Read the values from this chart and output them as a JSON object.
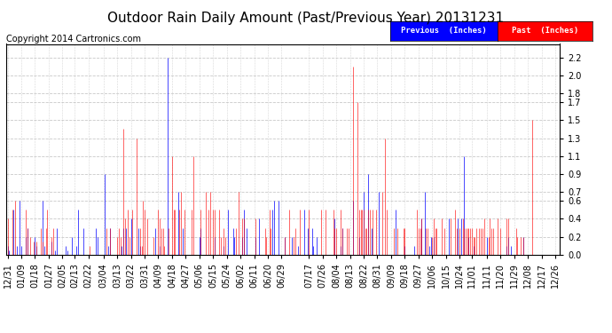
{
  "title": "Outdoor Rain Daily Amount (Past/Previous Year) 20131231",
  "copyright": "Copyright 2014 Cartronics.com",
  "legend_previous": "Previous  (Inches)",
  "legend_past": "Past  (Inches)",
  "yticks": [
    0.0,
    0.2,
    0.4,
    0.6,
    0.7,
    0.9,
    1.1,
    1.3,
    1.5,
    1.7,
    1.8,
    2.0,
    2.2
  ],
  "ylim": [
    0.0,
    2.35
  ],
  "bg_color": "#ffffff",
  "plot_bg_color": "#ffffff",
  "grid_color": "#bbbbbb",
  "color_previous": "#0000ff",
  "color_past": "#ff0000",
  "title_fontsize": 11,
  "copyright_fontsize": 7,
  "tick_fontsize": 7,
  "xtick_dates": [
    "12/31",
    "01/09",
    "01/18",
    "01/27",
    "02/05",
    "02/13",
    "02/22",
    "03/04",
    "03/13",
    "03/22",
    "03/31",
    "04/09",
    "04/18",
    "04/27",
    "05/06",
    "05/15",
    "05/24",
    "06/02",
    "06/11",
    "06/20",
    "06/29",
    "07/17",
    "07/26",
    "08/04",
    "08/13",
    "08/22",
    "08/31",
    "09/09",
    "09/18",
    "09/27",
    "10/06",
    "10/15",
    "10/24",
    "11/01",
    "11/11",
    "11/20",
    "11/29",
    "12/08",
    "12/17",
    "12/26"
  ],
  "rain_prev": [
    0.1,
    0.05,
    0.0,
    0.0,
    0.5,
    0.0,
    0.1,
    0.0,
    0.6,
    0.1,
    0.0,
    0.0,
    0.2,
    0.3,
    0.0,
    0.0,
    0.0,
    0.0,
    0.2,
    0.1,
    0.0,
    0.0,
    0.0,
    0.6,
    0.1,
    0.0,
    0.0,
    0.0,
    0.0,
    0.15,
    0.0,
    0.05,
    0.3,
    0.0,
    0.0,
    0.0,
    0.0,
    0.0,
    0.1,
    0.05,
    0.0,
    0.0,
    0.2,
    0.0,
    0.0,
    0.1,
    0.5,
    0.0,
    0.0,
    0.0,
    0.3,
    0.0,
    0.0,
    0.0,
    0.0,
    0.0,
    0.0,
    0.0,
    0.3,
    0.2,
    0.0,
    0.0,
    0.0,
    0.0,
    0.9,
    0.0,
    0.1,
    0.3,
    0.0,
    0.0,
    0.0,
    0.0,
    0.0,
    0.0,
    0.0,
    0.1,
    0.3,
    0.0,
    0.3,
    0.0,
    0.0,
    0.4,
    0.0,
    0.0,
    0.0,
    0.0,
    0.3,
    0.1,
    0.0,
    0.0,
    0.0,
    0.0,
    0.0,
    0.0,
    0.0,
    0.0,
    0.0,
    0.3,
    0.0,
    0.0,
    0.1,
    0.0,
    0.0,
    0.0,
    0.0,
    2.2,
    0.0,
    0.0,
    0.0,
    0.0,
    0.0,
    0.0,
    0.7,
    0.0,
    0.0,
    0.3,
    0.0,
    0.0,
    0.0,
    0.0,
    0.0,
    0.0,
    0.0,
    0.0,
    0.0,
    0.0,
    0.2,
    0.3,
    0.0,
    0.0,
    0.0,
    0.0,
    0.0,
    0.0,
    0.0,
    0.0,
    0.2,
    0.0,
    0.0,
    0.0,
    0.0,
    0.0,
    0.1,
    0.0,
    0.0,
    0.5,
    0.0,
    0.0,
    0.3,
    0.2,
    0.0,
    0.0,
    0.0,
    0.0,
    0.2,
    0.5,
    0.0,
    0.3,
    0.0,
    0.0,
    0.0,
    0.0,
    0.0,
    0.2,
    0.0,
    0.4,
    0.0,
    0.0,
    0.0,
    0.0,
    0.0,
    0.0,
    0.0,
    0.0,
    0.5,
    0.6,
    0.0,
    0.0,
    0.6,
    0.0,
    0.0,
    0.0,
    0.2,
    0.0,
    0.0,
    0.0,
    0.0,
    0.2,
    0.0,
    0.0,
    0.0,
    0.1,
    0.0,
    0.0,
    0.0,
    0.5,
    0.0,
    0.3,
    0.0,
    0.0,
    0.3,
    0.1,
    0.0,
    0.2,
    0.0,
    0.0,
    0.0,
    0.0,
    0.0,
    0.0,
    0.0,
    0.0,
    0.0,
    0.0,
    0.0,
    0.4,
    0.0,
    0.0,
    0.0,
    0.1,
    0.3,
    0.0,
    0.0,
    0.0,
    0.0,
    0.0,
    0.0,
    0.6,
    0.0,
    0.0,
    0.0,
    0.2,
    0.0,
    0.0,
    0.7,
    0.0,
    0.0,
    0.9,
    0.0,
    0.3,
    0.0,
    0.0,
    0.0,
    0.0,
    0.7,
    0.0,
    0.0,
    0.0,
    0.0,
    0.0,
    0.0,
    0.0,
    0.0,
    0.0,
    0.0,
    0.5,
    0.0,
    0.0,
    0.0,
    0.0,
    0.0,
    0.1,
    0.0,
    0.0,
    0.0,
    0.0,
    0.0,
    0.1,
    0.0,
    0.0,
    0.0,
    0.0,
    0.4,
    0.0,
    0.7,
    0.0,
    0.0,
    0.1,
    0.2,
    0.0,
    0.2,
    0.0,
    0.0,
    0.0,
    0.0,
    0.0,
    0.0,
    0.0,
    0.0,
    0.0,
    0.4,
    0.0,
    0.0,
    0.0,
    0.0,
    0.0,
    0.4,
    0.0,
    0.4,
    0.0,
    1.1,
    0.0,
    0.0,
    0.2,
    0.0,
    0.0,
    0.1,
    0.0,
    0.0,
    0.0,
    0.0,
    0.0,
    0.0,
    0.0,
    0.0,
    0.2,
    0.0,
    0.0,
    0.0,
    0.0,
    0.0,
    0.0,
    0.0,
    0.0,
    0.0,
    0.0,
    0.0,
    0.0,
    0.1,
    0.2,
    0.0,
    0.1,
    0.0,
    0.0,
    0.0,
    0.0,
    0.0,
    0.0,
    0.0,
    0.2,
    0.0,
    0.0,
    0.0,
    0.0,
    0.0,
    0.0,
    0.0,
    0.0,
    0.0,
    0.0,
    0.0,
    0.0,
    0.0,
    0.0,
    0.0,
    0.0,
    0.0,
    0.0,
    0.0,
    0.0,
    0.0,
    0.0,
    0.0
  ],
  "rain_past": [
    0.4,
    0.0,
    0.0,
    0.5,
    0.0,
    0.6,
    0.0,
    0.0,
    0.0,
    0.0,
    0.0,
    0.0,
    0.5,
    0.3,
    0.0,
    0.2,
    0.0,
    0.15,
    0.0,
    0.15,
    0.0,
    0.0,
    0.3,
    0.15,
    0.0,
    0.3,
    0.5,
    0.0,
    0.0,
    0.2,
    0.3,
    0.0,
    0.0,
    0.0,
    0.0,
    0.0,
    0.0,
    0.0,
    0.0,
    0.0,
    0.0,
    0.0,
    0.0,
    0.0,
    0.0,
    0.0,
    0.0,
    0.0,
    0.0,
    0.0,
    0.0,
    0.0,
    0.0,
    0.0,
    0.1,
    0.0,
    0.0,
    0.0,
    0.0,
    0.0,
    0.0,
    0.0,
    0.0,
    0.0,
    0.0,
    0.3,
    0.0,
    0.3,
    0.0,
    0.0,
    0.0,
    0.0,
    0.2,
    0.3,
    0.2,
    0.0,
    1.4,
    0.4,
    0.0,
    0.5,
    0.2,
    0.0,
    0.5,
    0.0,
    0.0,
    1.3,
    0.0,
    0.3,
    0.1,
    0.6,
    0.5,
    0.0,
    0.4,
    0.0,
    0.0,
    0.0,
    0.2,
    0.0,
    0.0,
    0.5,
    0.4,
    0.3,
    0.3,
    0.1,
    0.0,
    0.0,
    0.3,
    0.0,
    1.1,
    0.5,
    0.5,
    0.0,
    0.0,
    0.5,
    0.7,
    0.0,
    0.5,
    0.0,
    0.0,
    0.0,
    0.0,
    0.5,
    1.1,
    0.0,
    0.0,
    0.0,
    0.0,
    0.5,
    0.0,
    0.0,
    0.7,
    0.0,
    0.5,
    0.7,
    0.0,
    0.5,
    0.5,
    0.0,
    0.0,
    0.5,
    0.2,
    0.0,
    0.3,
    0.2,
    0.0,
    0.0,
    0.0,
    0.0,
    0.0,
    0.0,
    0.3,
    0.0,
    0.7,
    0.0,
    0.4,
    0.4,
    0.0,
    0.0,
    0.0,
    0.0,
    0.0,
    0.0,
    0.0,
    0.4,
    0.0,
    0.0,
    0.0,
    0.0,
    0.0,
    0.3,
    0.2,
    0.0,
    0.5,
    0.3,
    0.0,
    0.0,
    0.0,
    0.0,
    0.0,
    0.0,
    0.0,
    0.0,
    0.2,
    0.0,
    0.0,
    0.5,
    0.0,
    0.0,
    0.2,
    0.3,
    0.0,
    0.0,
    0.5,
    0.0,
    0.0,
    0.0,
    0.0,
    0.0,
    0.5,
    0.0,
    0.0,
    0.0,
    0.0,
    0.0,
    0.0,
    0.0,
    0.5,
    0.0,
    0.0,
    0.5,
    0.0,
    0.0,
    0.0,
    0.0,
    0.5,
    0.3,
    0.3,
    0.0,
    0.0,
    0.5,
    0.3,
    0.0,
    0.0,
    0.3,
    0.3,
    0.0,
    0.0,
    2.1,
    0.0,
    0.0,
    1.7,
    0.5,
    0.5,
    0.5,
    0.5,
    0.3,
    0.3,
    0.5,
    0.5,
    0.0,
    0.5,
    0.0,
    0.5,
    0.0,
    0.0,
    0.0,
    0.7,
    0.0,
    1.3,
    0.5,
    0.0,
    0.0,
    0.0,
    0.0,
    0.3,
    0.0,
    0.3,
    0.0,
    0.0,
    0.0,
    0.3,
    0.3,
    0.0,
    0.0,
    0.0,
    0.0,
    0.0,
    0.0,
    0.0,
    0.5,
    0.3,
    0.3,
    0.4,
    0.0,
    0.0,
    0.3,
    0.3,
    0.0,
    0.0,
    0.2,
    0.4,
    0.3,
    0.3,
    0.0,
    0.0,
    0.4,
    0.0,
    0.3,
    0.0,
    0.0,
    0.0,
    0.4,
    0.0,
    0.0,
    0.5,
    0.3,
    0.0,
    0.3,
    0.0,
    0.4,
    0.3,
    0.3,
    0.3,
    0.3,
    0.3,
    0.3,
    0.2,
    0.2,
    0.3,
    0.0,
    0.3,
    0.3,
    0.3,
    0.4,
    0.0,
    0.0,
    0.2,
    0.4,
    0.3,
    0.3,
    0.0,
    0.0,
    0.4,
    0.0,
    0.3,
    0.0,
    0.0,
    0.0,
    0.4,
    0.4,
    0.0,
    0.0,
    0.0,
    0.0,
    0.3,
    0.2,
    0.0,
    0.2,
    0.0,
    0.2,
    0.0,
    0.0,
    0.0,
    0.0,
    0.0,
    1.5,
    0.0,
    0.0,
    0.0,
    0.0,
    0.0,
    0.0,
    0.0,
    0.0,
    0.0,
    0.0,
    0.0,
    0.0,
    0.0,
    0.0,
    0.0,
    0.0,
    0.0
  ]
}
